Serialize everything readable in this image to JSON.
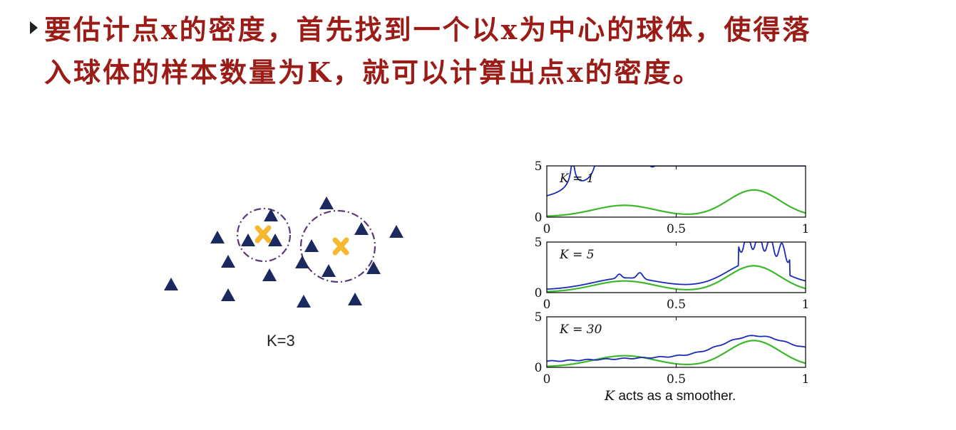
{
  "slide": {
    "line1": "要估计点x的密度，首先找到一个以x为中心的球体，使得落",
    "line2": "入球体的样本数量为K，就可以计算出点x的密度。"
  },
  "left_diagram": {
    "label": "K=3",
    "colors": {
      "triangle": "#1b2a5e",
      "cross": "#f5b82e",
      "circle": "#5a3a78"
    }
  },
  "chart_data": {
    "type": "line",
    "caption_var": "K",
    "caption_rest": " acts as a smoother.",
    "colors": {
      "estimate": "#1a2ab8",
      "truth": "#3cb82a"
    },
    "panels": [
      {
        "label": "K = 1",
        "xlim": [
          0,
          1
        ],
        "ylim": [
          0,
          5
        ],
        "xticks": [
          "0",
          "0.5",
          "1"
        ],
        "ytick_labels": [
          "5",
          "0"
        ]
      },
      {
        "label": "K = 5",
        "xlim": [
          0,
          1
        ],
        "ylim": [
          0,
          5
        ],
        "xticks": [
          "0",
          "0.5",
          "1"
        ],
        "ytick_labels": [
          "5",
          "0"
        ]
      },
      {
        "label": "K = 30",
        "xlim": [
          0,
          1
        ],
        "ylim": [
          0,
          5
        ],
        "xticks": [
          "0",
          "0.5",
          "1"
        ],
        "ytick_labels": [
          "5",
          "0"
        ]
      }
    ]
  }
}
